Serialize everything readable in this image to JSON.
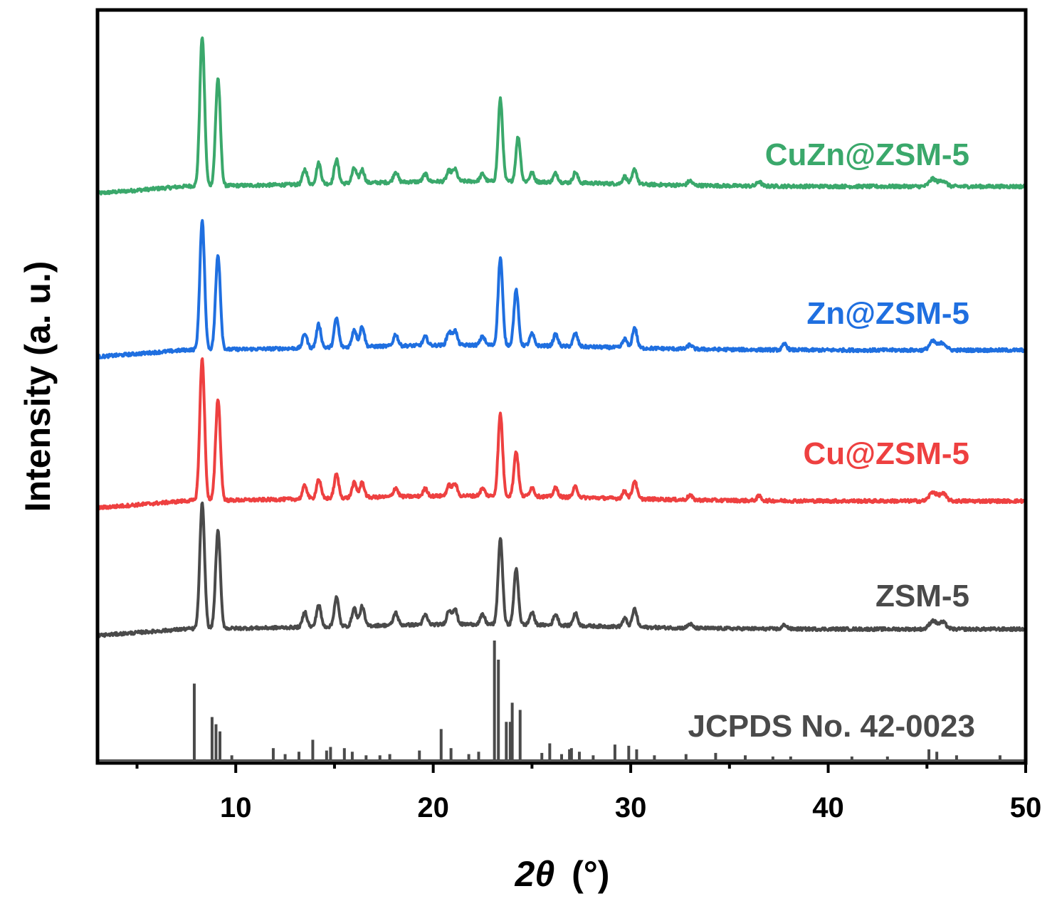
{
  "chart_data": {
    "type": "line",
    "title": "",
    "xlabel": {
      "symbol": "2θ",
      "unit": "(°)"
    },
    "ylabel": "Intensity (a. u.)",
    "xlim": [
      3,
      50
    ],
    "xticks": [
      10,
      20,
      30,
      40,
      50
    ],
    "yticks_shown": false,
    "grid": false,
    "legend": "labels placed beside each trace (right side)",
    "series": [
      {
        "name": "CuZn@ZSM-5",
        "color": "#3aa86b",
        "peaks": [
          {
            "x": 8.0,
            "h": 0.0
          },
          {
            "x": 8.3,
            "h": 1.0
          },
          {
            "x": 9.1,
            "h": 0.72
          },
          {
            "x": 13.5,
            "h": 0.1
          },
          {
            "x": 14.2,
            "h": 0.14
          },
          {
            "x": 15.1,
            "h": 0.16
          },
          {
            "x": 16.0,
            "h": 0.1
          },
          {
            "x": 16.4,
            "h": 0.09
          },
          {
            "x": 18.1,
            "h": 0.07
          },
          {
            "x": 19.6,
            "h": 0.05
          },
          {
            "x": 20.8,
            "h": 0.07
          },
          {
            "x": 21.1,
            "h": 0.08
          },
          {
            "x": 22.5,
            "h": 0.05
          },
          {
            "x": 23.4,
            "h": 0.55
          },
          {
            "x": 24.3,
            "h": 0.3
          },
          {
            "x": 25.0,
            "h": 0.06
          },
          {
            "x": 26.2,
            "h": 0.06
          },
          {
            "x": 27.2,
            "h": 0.07
          },
          {
            "x": 29.7,
            "h": 0.05
          },
          {
            "x": 30.2,
            "h": 0.1
          },
          {
            "x": 33.0,
            "h": 0.03
          },
          {
            "x": 36.5,
            "h": 0.03
          },
          {
            "x": 45.3,
            "h": 0.05
          },
          {
            "x": 45.8,
            "h": 0.04
          }
        ]
      },
      {
        "name": "Zn@ZSM-5",
        "color": "#1f6fe0",
        "peaks": [
          {
            "x": 8.3,
            "h": 0.88
          },
          {
            "x": 9.1,
            "h": 0.65
          },
          {
            "x": 13.5,
            "h": 0.1
          },
          {
            "x": 14.2,
            "h": 0.16
          },
          {
            "x": 15.1,
            "h": 0.2
          },
          {
            "x": 16.0,
            "h": 0.12
          },
          {
            "x": 16.4,
            "h": 0.14
          },
          {
            "x": 18.1,
            "h": 0.08
          },
          {
            "x": 19.6,
            "h": 0.06
          },
          {
            "x": 20.8,
            "h": 0.09
          },
          {
            "x": 21.1,
            "h": 0.1
          },
          {
            "x": 22.5,
            "h": 0.06
          },
          {
            "x": 23.4,
            "h": 0.6
          },
          {
            "x": 24.2,
            "h": 0.38
          },
          {
            "x": 25.0,
            "h": 0.08
          },
          {
            "x": 26.2,
            "h": 0.08
          },
          {
            "x": 27.2,
            "h": 0.09
          },
          {
            "x": 29.7,
            "h": 0.06
          },
          {
            "x": 30.2,
            "h": 0.14
          },
          {
            "x": 33.0,
            "h": 0.03
          },
          {
            "x": 37.8,
            "h": 0.04
          },
          {
            "x": 45.3,
            "h": 0.06
          },
          {
            "x": 45.8,
            "h": 0.05
          }
        ]
      },
      {
        "name": "Cu@ZSM-5",
        "color": "#ee4040",
        "peaks": [
          {
            "x": 8.3,
            "h": 0.95
          },
          {
            "x": 9.1,
            "h": 0.68
          },
          {
            "x": 13.5,
            "h": 0.09
          },
          {
            "x": 14.2,
            "h": 0.13
          },
          {
            "x": 15.1,
            "h": 0.16
          },
          {
            "x": 16.0,
            "h": 0.1
          },
          {
            "x": 16.4,
            "h": 0.1
          },
          {
            "x": 18.1,
            "h": 0.06
          },
          {
            "x": 19.6,
            "h": 0.05
          },
          {
            "x": 20.8,
            "h": 0.07
          },
          {
            "x": 21.1,
            "h": 0.08
          },
          {
            "x": 22.5,
            "h": 0.05
          },
          {
            "x": 23.4,
            "h": 0.55
          },
          {
            "x": 24.2,
            "h": 0.3
          },
          {
            "x": 25.0,
            "h": 0.06
          },
          {
            "x": 26.2,
            "h": 0.06
          },
          {
            "x": 27.2,
            "h": 0.07
          },
          {
            "x": 29.7,
            "h": 0.05
          },
          {
            "x": 30.2,
            "h": 0.12
          },
          {
            "x": 33.0,
            "h": 0.03
          },
          {
            "x": 36.5,
            "h": 0.03
          },
          {
            "x": 45.3,
            "h": 0.06
          },
          {
            "x": 45.8,
            "h": 0.05
          }
        ]
      },
      {
        "name": "ZSM-5",
        "color": "#4a4a4a",
        "peaks": [
          {
            "x": 8.3,
            "h": 0.9
          },
          {
            "x": 9.1,
            "h": 0.7
          },
          {
            "x": 13.5,
            "h": 0.11
          },
          {
            "x": 14.2,
            "h": 0.16
          },
          {
            "x": 15.1,
            "h": 0.21
          },
          {
            "x": 16.0,
            "h": 0.13
          },
          {
            "x": 16.4,
            "h": 0.14
          },
          {
            "x": 18.1,
            "h": 0.09
          },
          {
            "x": 19.6,
            "h": 0.07
          },
          {
            "x": 20.8,
            "h": 0.1
          },
          {
            "x": 21.1,
            "h": 0.11
          },
          {
            "x": 22.5,
            "h": 0.07
          },
          {
            "x": 23.4,
            "h": 0.62
          },
          {
            "x": 24.2,
            "h": 0.4
          },
          {
            "x": 25.0,
            "h": 0.09
          },
          {
            "x": 26.2,
            "h": 0.08
          },
          {
            "x": 27.2,
            "h": 0.09
          },
          {
            "x": 29.7,
            "h": 0.06
          },
          {
            "x": 30.2,
            "h": 0.13
          },
          {
            "x": 33.0,
            "h": 0.03
          },
          {
            "x": 37.8,
            "h": 0.03
          },
          {
            "x": 45.3,
            "h": 0.06
          },
          {
            "x": 45.8,
            "h": 0.05
          }
        ]
      }
    ],
    "reference": {
      "name": "JCPDS No. 42-0023",
      "color": "#4a4a4a",
      "lines": [
        {
          "x": 7.9,
          "h": 0.64
        },
        {
          "x": 8.8,
          "h": 0.36
        },
        {
          "x": 9.0,
          "h": 0.3
        },
        {
          "x": 9.2,
          "h": 0.24
        },
        {
          "x": 9.8,
          "h": 0.04
        },
        {
          "x": 11.9,
          "h": 0.1
        },
        {
          "x": 12.5,
          "h": 0.05
        },
        {
          "x": 13.2,
          "h": 0.07
        },
        {
          "x": 13.9,
          "h": 0.17
        },
        {
          "x": 14.6,
          "h": 0.08
        },
        {
          "x": 14.8,
          "h": 0.11
        },
        {
          "x": 15.5,
          "h": 0.1
        },
        {
          "x": 15.9,
          "h": 0.07
        },
        {
          "x": 16.6,
          "h": 0.04
        },
        {
          "x": 17.3,
          "h": 0.04
        },
        {
          "x": 17.8,
          "h": 0.05
        },
        {
          "x": 19.3,
          "h": 0.08
        },
        {
          "x": 20.4,
          "h": 0.26
        },
        {
          "x": 20.9,
          "h": 0.1
        },
        {
          "x": 21.8,
          "h": 0.05
        },
        {
          "x": 22.3,
          "h": 0.07
        },
        {
          "x": 23.1,
          "h": 1.0
        },
        {
          "x": 23.3,
          "h": 0.84
        },
        {
          "x": 23.7,
          "h": 0.32
        },
        {
          "x": 23.9,
          "h": 0.32
        },
        {
          "x": 24.0,
          "h": 0.48
        },
        {
          "x": 24.4,
          "h": 0.42
        },
        {
          "x": 25.5,
          "h": 0.06
        },
        {
          "x": 25.9,
          "h": 0.14
        },
        {
          "x": 26.5,
          "h": 0.05
        },
        {
          "x": 26.9,
          "h": 0.09
        },
        {
          "x": 27.0,
          "h": 0.1
        },
        {
          "x": 27.4,
          "h": 0.07
        },
        {
          "x": 28.1,
          "h": 0.04
        },
        {
          "x": 29.2,
          "h": 0.13
        },
        {
          "x": 29.9,
          "h": 0.12
        },
        {
          "x": 30.3,
          "h": 0.09
        },
        {
          "x": 31.2,
          "h": 0.04
        },
        {
          "x": 32.8,
          "h": 0.05
        },
        {
          "x": 34.3,
          "h": 0.06
        },
        {
          "x": 35.8,
          "h": 0.04
        },
        {
          "x": 37.2,
          "h": 0.03
        },
        {
          "x": 38.1,
          "h": 0.03
        },
        {
          "x": 41.2,
          "h": 0.03
        },
        {
          "x": 43.0,
          "h": 0.03
        },
        {
          "x": 45.1,
          "h": 0.09
        },
        {
          "x": 45.5,
          "h": 0.07
        },
        {
          "x": 46.5,
          "h": 0.04
        },
        {
          "x": 48.7,
          "h": 0.04
        }
      ]
    }
  }
}
